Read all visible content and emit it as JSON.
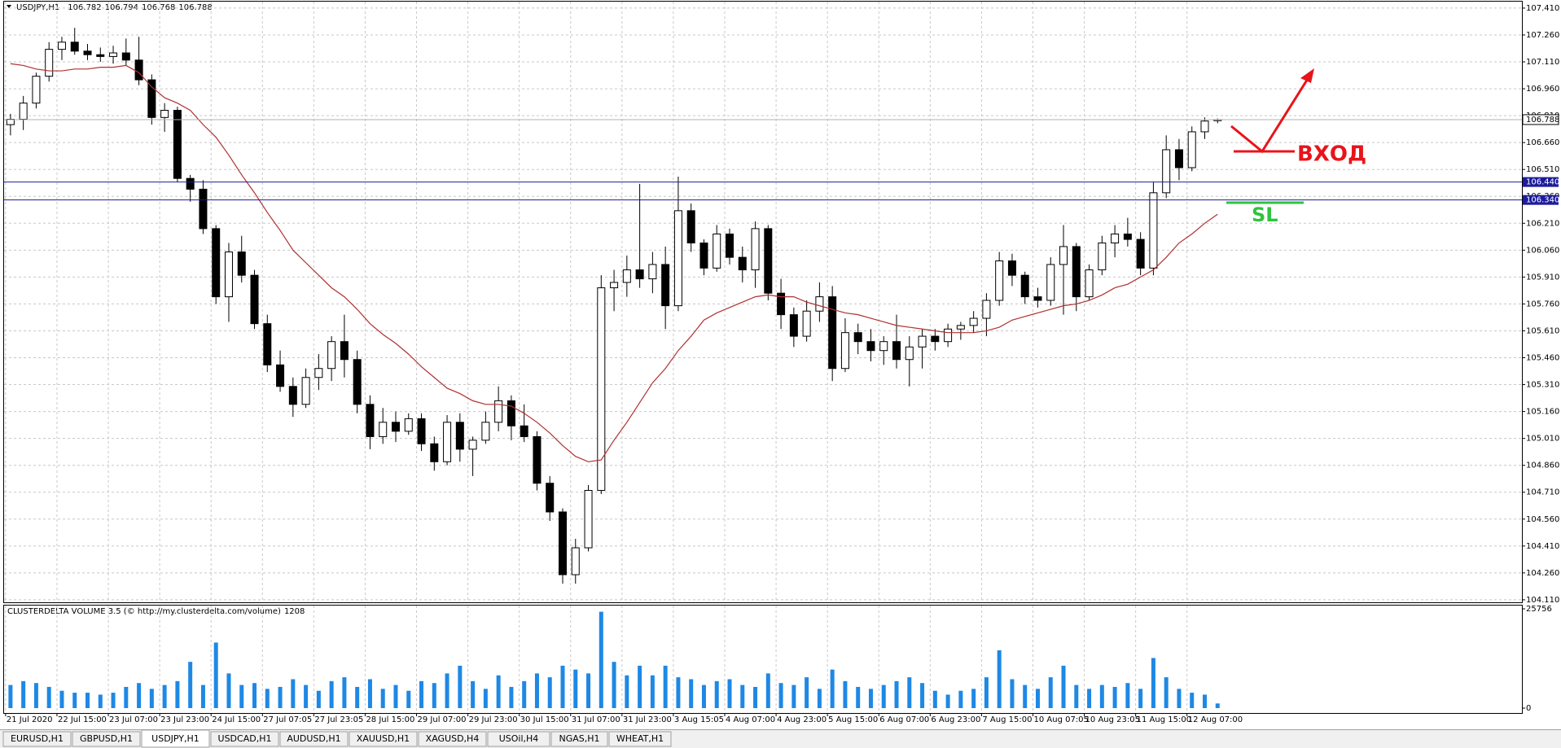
{
  "chart_data": [
    {
      "type": "candlestick",
      "title": "USDJPY,H1",
      "categories": [
        "21 Jul 2020",
        null,
        null,
        null,
        "22 Jul 15:00",
        null,
        null,
        null,
        "23 Jul 07:00",
        null,
        null,
        null,
        "23 Jul 23:00",
        null,
        null,
        null,
        "24 Jul 15:00",
        null,
        null,
        null,
        "27 Jul 07:05",
        null,
        null,
        null,
        "27 Jul 23:05",
        null,
        null,
        null,
        "28 Jul 15:00",
        null,
        null,
        null,
        "29 Jul 07:00",
        null,
        null,
        null,
        "29 Jul 23:00",
        null,
        null,
        null,
        "30 Jul 15:00",
        null,
        null,
        null,
        "31 Jul 07:00",
        null,
        null,
        null,
        "31 Jul 23:00",
        null,
        null,
        null,
        "3 Aug 15:05",
        null,
        null,
        null,
        "4 Aug 07:00",
        null,
        null,
        null,
        "4 Aug 23:00",
        null,
        null,
        null,
        "5 Aug 15:00",
        null,
        null,
        null,
        "6 Aug 07:00",
        null,
        null,
        null,
        "6 Aug 23:00",
        null,
        null,
        null,
        "7 Aug 15:00",
        null,
        null,
        null,
        "10 Aug 07:05",
        null,
        null,
        null,
        "10 Aug 23:05",
        null,
        null,
        null,
        "11 Aug 15:00",
        null,
        null,
        null,
        "12 Aug 07:00",
        null,
        null
      ],
      "open": [
        106.76,
        106.79,
        106.88,
        107.03,
        107.18,
        107.22,
        107.17,
        107.15,
        107.14,
        107.16,
        107.12,
        107.01,
        106.8,
        106.84,
        106.46,
        106.4,
        106.18,
        105.8,
        106.05,
        105.92,
        105.65,
        105.42,
        105.3,
        105.2,
        105.35,
        105.4,
        105.55,
        105.45,
        105.2,
        105.02,
        105.1,
        105.05,
        105.12,
        104.98,
        104.88,
        105.1,
        104.95,
        105.0,
        105.1,
        105.22,
        105.08,
        105.02,
        104.76,
        104.6,
        104.25,
        104.4,
        104.72,
        105.85,
        105.88,
        105.95,
        105.9,
        105.98,
        105.75,
        106.28,
        106.1,
        105.96,
        106.15,
        106.02,
        105.95,
        106.18,
        105.82,
        105.7,
        105.58,
        105.72,
        105.8,
        105.4,
        105.6,
        105.55,
        105.5,
        105.55,
        105.45,
        105.52,
        105.58,
        105.55,
        105.62,
        105.64,
        105.68,
        105.78,
        106.0,
        105.92,
        105.8,
        105.78,
        105.98,
        106.08,
        105.8,
        105.95,
        106.1,
        106.15,
        106.12,
        105.96,
        106.38,
        106.62,
        106.52,
        106.72,
        106.782
      ],
      "high": [
        106.82,
        106.92,
        107.05,
        107.22,
        107.25,
        107.3,
        107.21,
        107.19,
        107.2,
        107.24,
        107.25,
        107.04,
        106.88,
        106.86,
        106.48,
        106.45,
        106.2,
        106.1,
        106.14,
        105.95,
        105.7,
        105.5,
        105.35,
        105.4,
        105.48,
        105.58,
        105.7,
        105.5,
        105.25,
        105.18,
        105.16,
        105.15,
        105.15,
        105.02,
        105.14,
        105.15,
        105.02,
        105.16,
        105.3,
        105.25,
        105.2,
        105.05,
        104.8,
        104.62,
        104.45,
        104.75,
        105.92,
        105.95,
        106.03,
        106.43,
        106.05,
        106.08,
        106.47,
        106.32,
        106.12,
        106.2,
        106.18,
        106.08,
        106.22,
        106.2,
        105.9,
        105.74,
        105.78,
        105.88,
        105.86,
        105.68,
        105.65,
        105.62,
        105.58,
        105.7,
        105.58,
        105.62,
        105.62,
        105.65,
        105.66,
        105.72,
        105.82,
        106.05,
        106.04,
        105.94,
        105.85,
        106.02,
        106.2,
        106.1,
        105.98,
        106.14,
        106.2,
        106.24,
        106.16,
        106.44,
        106.7,
        106.68,
        106.75,
        106.8,
        106.794
      ],
      "low": [
        106.7,
        106.73,
        106.85,
        107.0,
        107.12,
        107.15,
        107.12,
        107.11,
        107.1,
        107.09,
        106.98,
        106.76,
        106.72,
        106.44,
        106.33,
        106.15,
        105.76,
        105.66,
        105.88,
        105.62,
        105.38,
        105.27,
        105.13,
        105.18,
        105.28,
        105.33,
        105.35,
        105.15,
        104.95,
        104.98,
        104.99,
        105.03,
        104.94,
        104.83,
        104.86,
        104.88,
        104.8,
        104.98,
        105.05,
        105.0,
        104.99,
        104.72,
        104.55,
        104.2,
        104.2,
        104.38,
        104.7,
        105.72,
        105.8,
        105.85,
        105.82,
        105.62,
        105.72,
        106.05,
        105.92,
        105.94,
        105.98,
        105.88,
        105.85,
        105.78,
        105.62,
        105.52,
        105.55,
        105.66,
        105.33,
        105.38,
        105.48,
        105.44,
        105.42,
        105.4,
        105.3,
        105.4,
        105.5,
        105.52,
        105.56,
        105.6,
        105.58,
        105.75,
        105.86,
        105.76,
        105.74,
        105.75,
        105.7,
        105.72,
        105.78,
        105.92,
        106.02,
        106.08,
        105.92,
        105.92,
        106.35,
        106.45,
        106.5,
        106.68,
        106.768
      ],
      "close": [
        106.79,
        106.88,
        107.03,
        107.18,
        107.22,
        107.17,
        107.15,
        107.14,
        107.16,
        107.12,
        107.01,
        106.8,
        106.84,
        106.46,
        106.4,
        106.18,
        105.8,
        106.05,
        105.92,
        105.65,
        105.42,
        105.3,
        105.2,
        105.35,
        105.4,
        105.55,
        105.45,
        105.2,
        105.02,
        105.1,
        105.05,
        105.12,
        104.98,
        104.88,
        105.1,
        104.95,
        105.0,
        105.1,
        105.22,
        105.08,
        105.02,
        104.76,
        104.6,
        104.25,
        104.4,
        104.72,
        105.85,
        105.88,
        105.95,
        105.9,
        105.98,
        105.75,
        106.28,
        106.1,
        105.96,
        106.15,
        106.02,
        105.95,
        106.18,
        105.82,
        105.7,
        105.58,
        105.72,
        105.8,
        105.4,
        105.6,
        105.55,
        105.5,
        105.55,
        105.45,
        105.52,
        105.58,
        105.55,
        105.62,
        105.64,
        105.68,
        105.78,
        106.0,
        105.92,
        105.8,
        105.78,
        105.98,
        106.08,
        105.8,
        105.95,
        106.1,
        106.15,
        106.12,
        105.96,
        106.38,
        106.62,
        106.52,
        106.72,
        106.78,
        106.788
      ],
      "up_color": "#ffffff",
      "down_color": "#000000",
      "wick_color": "#000000",
      "overlays": [
        {
          "type": "line",
          "color": "#b03030",
          "values": [
            107.1,
            107.09,
            107.07,
            107.06,
            107.06,
            107.07,
            107.07,
            107.08,
            107.08,
            107.09,
            107.05,
            106.97,
            106.91,
            106.88,
            106.84,
            106.76,
            106.69,
            106.59,
            106.48,
            106.38,
            106.27,
            106.17,
            106.06,
            105.99,
            105.92,
            105.85,
            105.8,
            105.73,
            105.65,
            105.59,
            105.54,
            105.48,
            105.41,
            105.35,
            105.29,
            105.26,
            105.22,
            105.2,
            105.2,
            105.19,
            105.15,
            105.1,
            105.04,
            104.97,
            104.91,
            104.88,
            104.89,
            105.0,
            105.1,
            105.21,
            105.32,
            105.4,
            105.5,
            105.58,
            105.67,
            105.71,
            105.74,
            105.77,
            105.8,
            105.81,
            105.8,
            105.8,
            105.77,
            105.75,
            105.73,
            105.71,
            105.7,
            105.68,
            105.66,
            105.64,
            105.63,
            105.62,
            105.61,
            105.6,
            105.6,
            105.6,
            105.61,
            105.63,
            105.67,
            105.69,
            105.71,
            105.73,
            105.75,
            105.76,
            105.78,
            105.81,
            105.85,
            105.87,
            105.91,
            105.95,
            106.02,
            106.1,
            106.15,
            106.21,
            106.26
          ]
        }
      ],
      "ylim": [
        104.096,
        107.446
      ],
      "yticks": [
        {
          "value": 104.11,
          "label": "104.110"
        },
        {
          "value": 104.26,
          "label": "104.260"
        },
        {
          "value": 104.41,
          "label": "104.410"
        },
        {
          "value": 104.56,
          "label": "104.560"
        },
        {
          "value": 104.71,
          "label": "104.710"
        },
        {
          "value": 104.86,
          "label": "104.860"
        },
        {
          "value": 105.01,
          "label": "105.010"
        },
        {
          "value": 105.16,
          "label": "105.160"
        },
        {
          "value": 105.31,
          "label": "105.310"
        },
        {
          "value": 105.46,
          "label": "105.460"
        },
        {
          "value": 105.61,
          "label": "105.610"
        },
        {
          "value": 105.76,
          "label": "105.760"
        },
        {
          "value": 105.91,
          "label": "105.910"
        },
        {
          "value": 106.06,
          "label": "106.060"
        },
        {
          "value": 106.21,
          "label": "106.210"
        },
        {
          "value": 106.36,
          "label": "106.360"
        },
        {
          "value": 106.51,
          "label": "106.510"
        },
        {
          "value": 106.66,
          "label": "106.660"
        },
        {
          "value": 106.81,
          "label": "106.810"
        },
        {
          "value": 106.96,
          "label": "106.960"
        },
        {
          "value": 107.11,
          "label": "107.110"
        },
        {
          "value": 107.26,
          "label": "107.260"
        },
        {
          "value": 107.41,
          "label": "107.410"
        }
      ],
      "grid": true,
      "levels": [
        {
          "value": 106.44,
          "label": "106.440",
          "color": "#1c1c9c"
        },
        {
          "value": 106.34,
          "label": "106.340",
          "color": "#1c1c9c"
        }
      ],
      "current_price": {
        "value": 106.788,
        "label": "106.788",
        "color": "#b0b0b0"
      },
      "annotations": [
        {
          "text": "ВХОД",
          "color": "#e8141b"
        },
        {
          "text": "SL",
          "color": "#2ec43e"
        }
      ]
    },
    {
      "type": "bar",
      "title": "CLUSTERDELTA VOLUME 3.5 (© http://my.clusterdelta.com/volume)",
      "color": "#1e88e5",
      "values": [
        6000,
        7000,
        6500,
        5500,
        4500,
        4000,
        4000,
        3500,
        4000,
        5500,
        6500,
        5000,
        6000,
        7000,
        12000,
        6000,
        17000,
        9000,
        6000,
        6500,
        5000,
        5500,
        7500,
        6000,
        4500,
        7000,
        8000,
        5500,
        7500,
        5000,
        6000,
        4500,
        7000,
        6500,
        9000,
        11000,
        7000,
        5000,
        8500,
        5500,
        7000,
        9000,
        8000,
        11000,
        10000,
        9000,
        25000,
        12000,
        8500,
        11000,
        8500,
        11000,
        8000,
        7500,
        6000,
        7000,
        7500,
        6000,
        5500,
        9000,
        6500,
        6000,
        8000,
        5000,
        10000,
        7000,
        5500,
        5000,
        6000,
        7000,
        8000,
        6500,
        4500,
        3500,
        4500,
        5000,
        8000,
        15000,
        7500,
        6000,
        5000,
        8000,
        11000,
        6000,
        5000,
        6000,
        5500,
        6500,
        5000,
        13000,
        8000,
        5000,
        4000,
        3500,
        1208
      ],
      "ylim": [
        0,
        25756
      ],
      "yticks": [
        0,
        25756
      ]
    }
  ],
  "tabs": [
    "EURUSD,H1",
    "GBPUSD,H1",
    "USDJPY,H1",
    "USDCAD,H1",
    "AUDUSD,H1",
    "XAUUSD,H1",
    "XAGUSD,H4",
    "USOil,H4",
    "NGAS,H1",
    "WHEAT,H1"
  ],
  "active_tab": 2
}
